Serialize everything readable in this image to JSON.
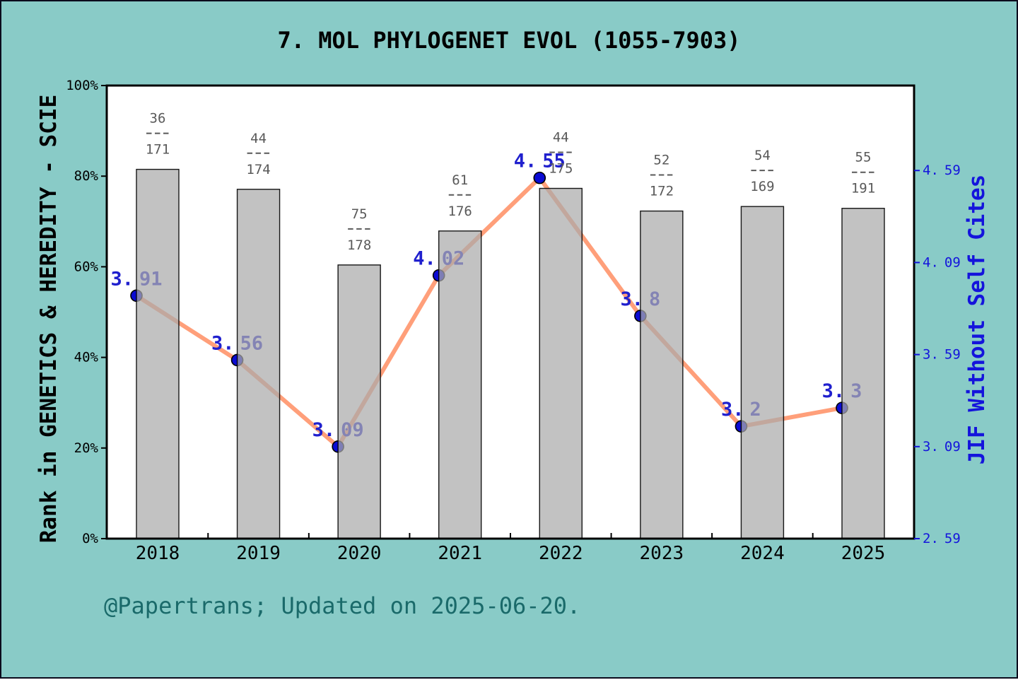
{
  "title": "7. MOL PHYLOGENET EVOL (1055-7903)",
  "footer": "@Papertrans; Updated on 2025-06-20.",
  "colors": {
    "background": "#89CBC7",
    "page_border": "#0B0B1C",
    "plot_background": "#FFFFFF",
    "axis_spine": "#000000",
    "bar_fill": "#ABABAB",
    "bar_edge": "#000000",
    "line": "#FF9F7A",
    "marker_fill": "#0B0BD3",
    "marker_edge": "#000000",
    "value_label": "#2020CE",
    "right_axis": "#1414DC",
    "fraction_label": "#595959",
    "tick_label": "#000000",
    "footer_text": "#1A6A6A"
  },
  "chart_data": {
    "type": "bar",
    "title": "7. MOL PHYLOGENET EVOL (1055-7903)",
    "categories": [
      "2018",
      "2019",
      "2020",
      "2021",
      "2022",
      "2023",
      "2024",
      "2025"
    ],
    "series": [
      {
        "name": "Rank in GENETICS & HEREDITY - SCIE",
        "type": "bar",
        "axis": "left",
        "rank": [
          36,
          44,
          75,
          61,
          44,
          52,
          54,
          55
        ],
        "total": [
          171,
          174,
          178,
          176,
          175,
          172,
          169,
          191
        ],
        "values": [
          81.5,
          77.1,
          60.4,
          67.9,
          77.3,
          72.3,
          73.3,
          72.9
        ]
      },
      {
        "name": "JIF Without Self Cites",
        "type": "line",
        "axis": "right",
        "values": [
          3.91,
          3.56,
          3.09,
          4.02,
          4.55,
          3.8,
          3.2,
          3.3
        ]
      }
    ],
    "left_axis": {
      "label": "Rank in GENETICS & HEREDITY - SCIE",
      "tick_labels": [
        "0%",
        "20%",
        "40%",
        "60%",
        "80%",
        "100%"
      ],
      "tick_values": [
        0,
        20,
        40,
        60,
        80,
        100
      ],
      "range": [
        0,
        100
      ]
    },
    "right_axis": {
      "label": "JIF Without Self Cites",
      "tick_labels": [
        "2.59",
        "3.09",
        "3.59",
        "4.09",
        "4.59"
      ],
      "tick_values": [
        2.59,
        3.09,
        3.59,
        4.09,
        4.59
      ],
      "range": [
        2.59,
        4.59
      ]
    },
    "grid": false,
    "legend": false
  }
}
